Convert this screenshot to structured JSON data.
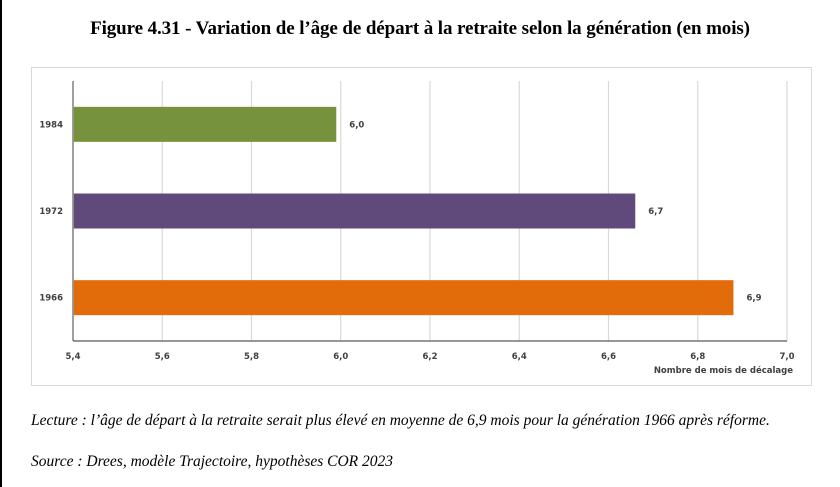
{
  "figure": {
    "title": "Figure 4.31 - Variation de l’âge de départ à la retraite selon la génération (en mois)",
    "lecture": "Lecture : l’âge de départ à la retraite serait plus élevé en moyenne de 6,9 mois pour la génération 1966 après réforme.",
    "source": "Source : Drees, modèle Trajectoire, hypothèses COR 2023"
  },
  "chart_data": {
    "type": "bar",
    "orientation": "horizontal",
    "title": "",
    "xlabel": "Nombre de mois de décalage",
    "ylabel": "",
    "xlim": [
      5.4,
      7.0
    ],
    "x_ticks": [
      5.4,
      5.6,
      5.8,
      6.0,
      6.2,
      6.4,
      6.6,
      6.8,
      7.0
    ],
    "x_tick_labels": [
      "5,4",
      "5,6",
      "5,8",
      "6,0",
      "6,2",
      "6,4",
      "6,6",
      "6,8",
      "7,0"
    ],
    "grid": "vertical",
    "legend": "none",
    "categories": [
      "1984",
      "1972",
      "1966"
    ],
    "values": [
      5.99,
      6.66,
      6.88
    ],
    "data_labels": [
      "6,0",
      "6,7",
      "6,9"
    ],
    "colors": [
      "#76923C",
      "#604A7B",
      "#E36C0A"
    ]
  }
}
